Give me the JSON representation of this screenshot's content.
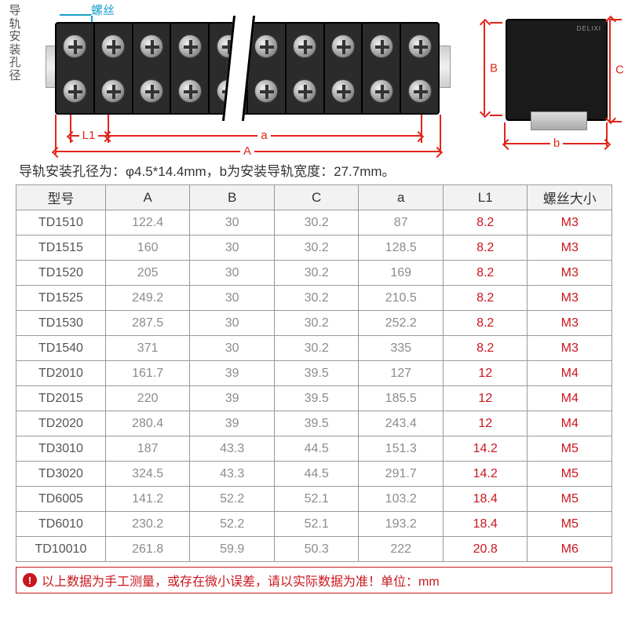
{
  "diagram": {
    "vertical_label": "导轨安装孔径",
    "screw_callout": "螺丝",
    "dims": {
      "A": "A",
      "B": "B",
      "C": "C",
      "a": "a",
      "L1": "L1",
      "b": "b"
    },
    "side_brand": "DELIXI",
    "terminal_positions": 10,
    "colors": {
      "dimension": "#e1251b",
      "callout": "#1aa0c9",
      "block": "#2b2b2b",
      "side": "#1a1a1a"
    }
  },
  "note_text": "导轨安装孔径为：φ4.5*14.4mm，b为安装导轨宽度：27.7mm。",
  "table": {
    "columns": [
      "型号",
      "A",
      "B",
      "C",
      "a",
      "L1",
      "螺丝大小"
    ],
    "red_columns": [
      5,
      6
    ],
    "rows": [
      [
        "TD1510",
        "122.4",
        "30",
        "30.2",
        "87",
        "8.2",
        "M3"
      ],
      [
        "TD1515",
        "160",
        "30",
        "30.2",
        "128.5",
        "8.2",
        "M3"
      ],
      [
        "TD1520",
        "205",
        "30",
        "30.2",
        "169",
        "8.2",
        "M3"
      ],
      [
        "TD1525",
        "249.2",
        "30",
        "30.2",
        "210.5",
        "8.2",
        "M3"
      ],
      [
        "TD1530",
        "287.5",
        "30",
        "30.2",
        "252.2",
        "8.2",
        "M3"
      ],
      [
        "TD1540",
        "371",
        "30",
        "30.2",
        "335",
        "8.2",
        "M3"
      ],
      [
        "TD2010",
        "161.7",
        "39",
        "39.5",
        "127",
        "12",
        "M4"
      ],
      [
        "TD2015",
        "220",
        "39",
        "39.5",
        "185.5",
        "12",
        "M4"
      ],
      [
        "TD2020",
        "280.4",
        "39",
        "39.5",
        "243.4",
        "12",
        "M4"
      ],
      [
        "TD3010",
        "187",
        "43.3",
        "44.5",
        "151.3",
        "14.2",
        "M5"
      ],
      [
        "TD3020",
        "324.5",
        "43.3",
        "44.5",
        "291.7",
        "14.2",
        "M5"
      ],
      [
        "TD6005",
        "141.2",
        "52.2",
        "52.1",
        "103.2",
        "18.4",
        "M5"
      ],
      [
        "TD6010",
        "230.2",
        "52.2",
        "52.1",
        "193.2",
        "18.4",
        "M5"
      ],
      [
        "TD10010",
        "261.8",
        "59.9",
        "50.3",
        "222",
        "20.8",
        "M6"
      ]
    ]
  },
  "footer_text": "以上数据为手工测量，或存在微小误差，请以实际数据为准！单位：mm"
}
